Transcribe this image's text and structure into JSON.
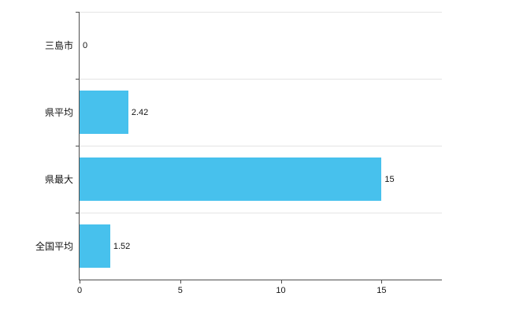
{
  "chart_data": {
    "type": "bar",
    "orientation": "horizontal",
    "title": "",
    "categories": [
      "三島市",
      "県平均",
      "県最大",
      "全国平均"
    ],
    "values": [
      0,
      2.42,
      15,
      1.52
    ],
    "value_labels": [
      "0",
      "2.42",
      "15",
      "1.52"
    ],
    "x_ticks": [
      0,
      5,
      10,
      15
    ],
    "x_tick_labels": [
      "0",
      "5",
      "10",
      "15"
    ],
    "xlim": [
      0,
      18
    ],
    "grid": true,
    "legend": "none",
    "colors": {
      "bar": "#47c1ed",
      "gridline": "#e4e4e4",
      "axis": "#4d4d4d",
      "text": "#141414",
      "background": "#ffffff"
    }
  }
}
